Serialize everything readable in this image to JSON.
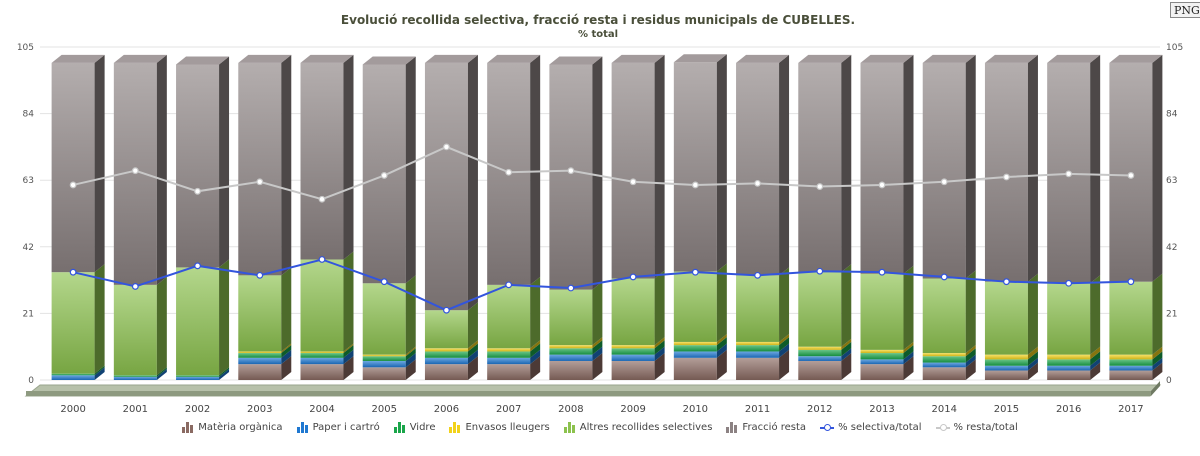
{
  "toolbar": {
    "png_label": "PNG"
  },
  "chart_data": {
    "type": "bar",
    "stacked": true,
    "title": "Evolució recollida selectiva, fracció resta i residus municipals de CUBELLES.",
    "subtitle": "% total",
    "ylim": [
      0,
      105
    ],
    "y_ticks": [
      0,
      21,
      42,
      63,
      84,
      105
    ],
    "categories": [
      "2000",
      "2001",
      "2002",
      "2003",
      "2004",
      "2005",
      "2006",
      "2007",
      "2008",
      "2009",
      "2010",
      "2011",
      "2012",
      "2013",
      "2014",
      "2015",
      "2016",
      "2017"
    ],
    "series": [
      {
        "name": "Matèria orgànica",
        "color": "#8a6a62",
        "values": [
          0,
          0,
          0,
          5,
          5,
          4,
          5,
          5,
          6,
          6,
          7,
          7,
          6,
          5,
          4,
          3,
          3,
          3
        ]
      },
      {
        "name": "Paper i cartró",
        "color": "#1f78d1",
        "values": [
          1.5,
          1,
          1,
          2,
          2,
          2,
          2,
          2,
          2,
          2,
          2,
          2,
          1.5,
          1.5,
          1.5,
          1.5,
          1.5,
          1.5
        ]
      },
      {
        "name": "Vidre",
        "color": "#1aa64a",
        "values": [
          0.5,
          0.5,
          0.5,
          1.5,
          1.5,
          1.5,
          2,
          2,
          2,
          2,
          2,
          2,
          2,
          2,
          2,
          2,
          2,
          2
        ]
      },
      {
        "name": "Envasos lleugers",
        "color": "#f2d21b",
        "values": [
          0,
          0,
          0,
          0.5,
          0.5,
          0.5,
          1,
          1,
          1,
          1,
          1,
          1,
          1,
          1,
          1,
          1.5,
          1.5,
          1.5
        ]
      },
      {
        "name": "Altres recollides selectives",
        "color": "#8cc24e",
        "values": [
          32,
          28.5,
          34,
          24,
          29,
          22.5,
          12,
          20,
          17.5,
          21,
          22.2,
          21,
          23.5,
          24,
          23.5,
          23,
          22.5,
          23
        ]
      },
      {
        "name": "Fracció resta",
        "color": "#8c8283",
        "values": [
          66,
          70,
          64,
          67,
          62,
          69,
          78,
          70,
          71,
          68,
          66,
          67,
          66,
          66.5,
          68,
          69,
          69.5,
          69
        ]
      }
    ],
    "lines": [
      {
        "name": "% selectiva/total",
        "color": "#3355dd",
        "values": [
          34,
          29.5,
          36,
          33,
          38,
          31,
          22,
          30,
          29,
          32.5,
          34,
          33,
          34.3,
          34,
          32.5,
          31,
          30.5,
          31
        ]
      },
      {
        "name": "% resta/total",
        "color": "#c8c8c8",
        "values": [
          61.5,
          66,
          59.5,
          62.5,
          57,
          64.5,
          73.5,
          65.5,
          66,
          62.5,
          61.5,
          62,
          61,
          61.5,
          62.5,
          64,
          65,
          64.5
        ]
      }
    ],
    "legend_position": "bottom-center",
    "grid": true
  }
}
